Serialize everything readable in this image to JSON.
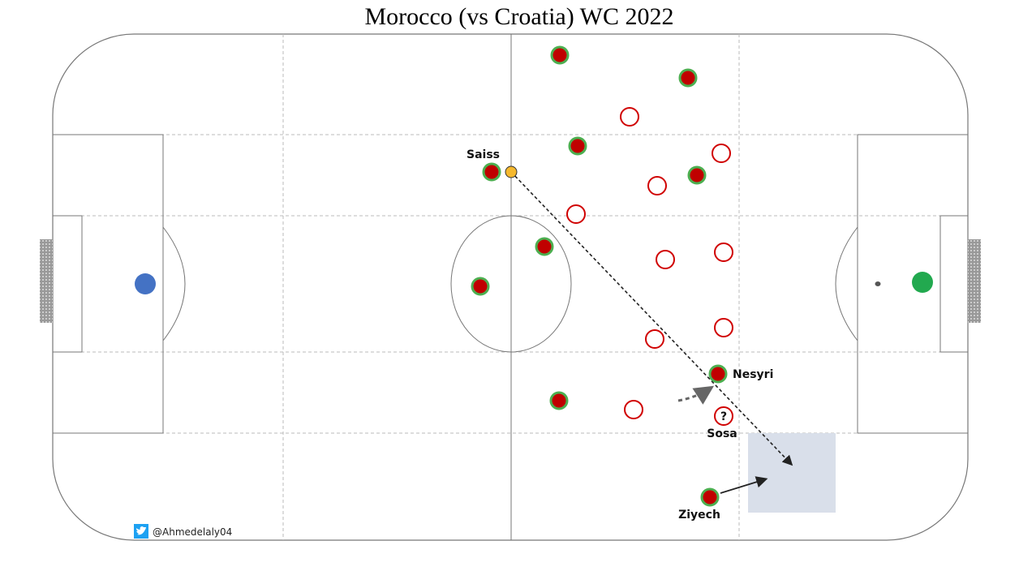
{
  "title": "Morocco (vs Croatia) WC 2022",
  "players": {
    "saiss": "Saiss",
    "nesyri": "Nesyri",
    "sosa_mark": "?",
    "sosa": "Sosa",
    "ziyech": "Ziyech"
  },
  "credit": "@Ahmedelaly04"
}
